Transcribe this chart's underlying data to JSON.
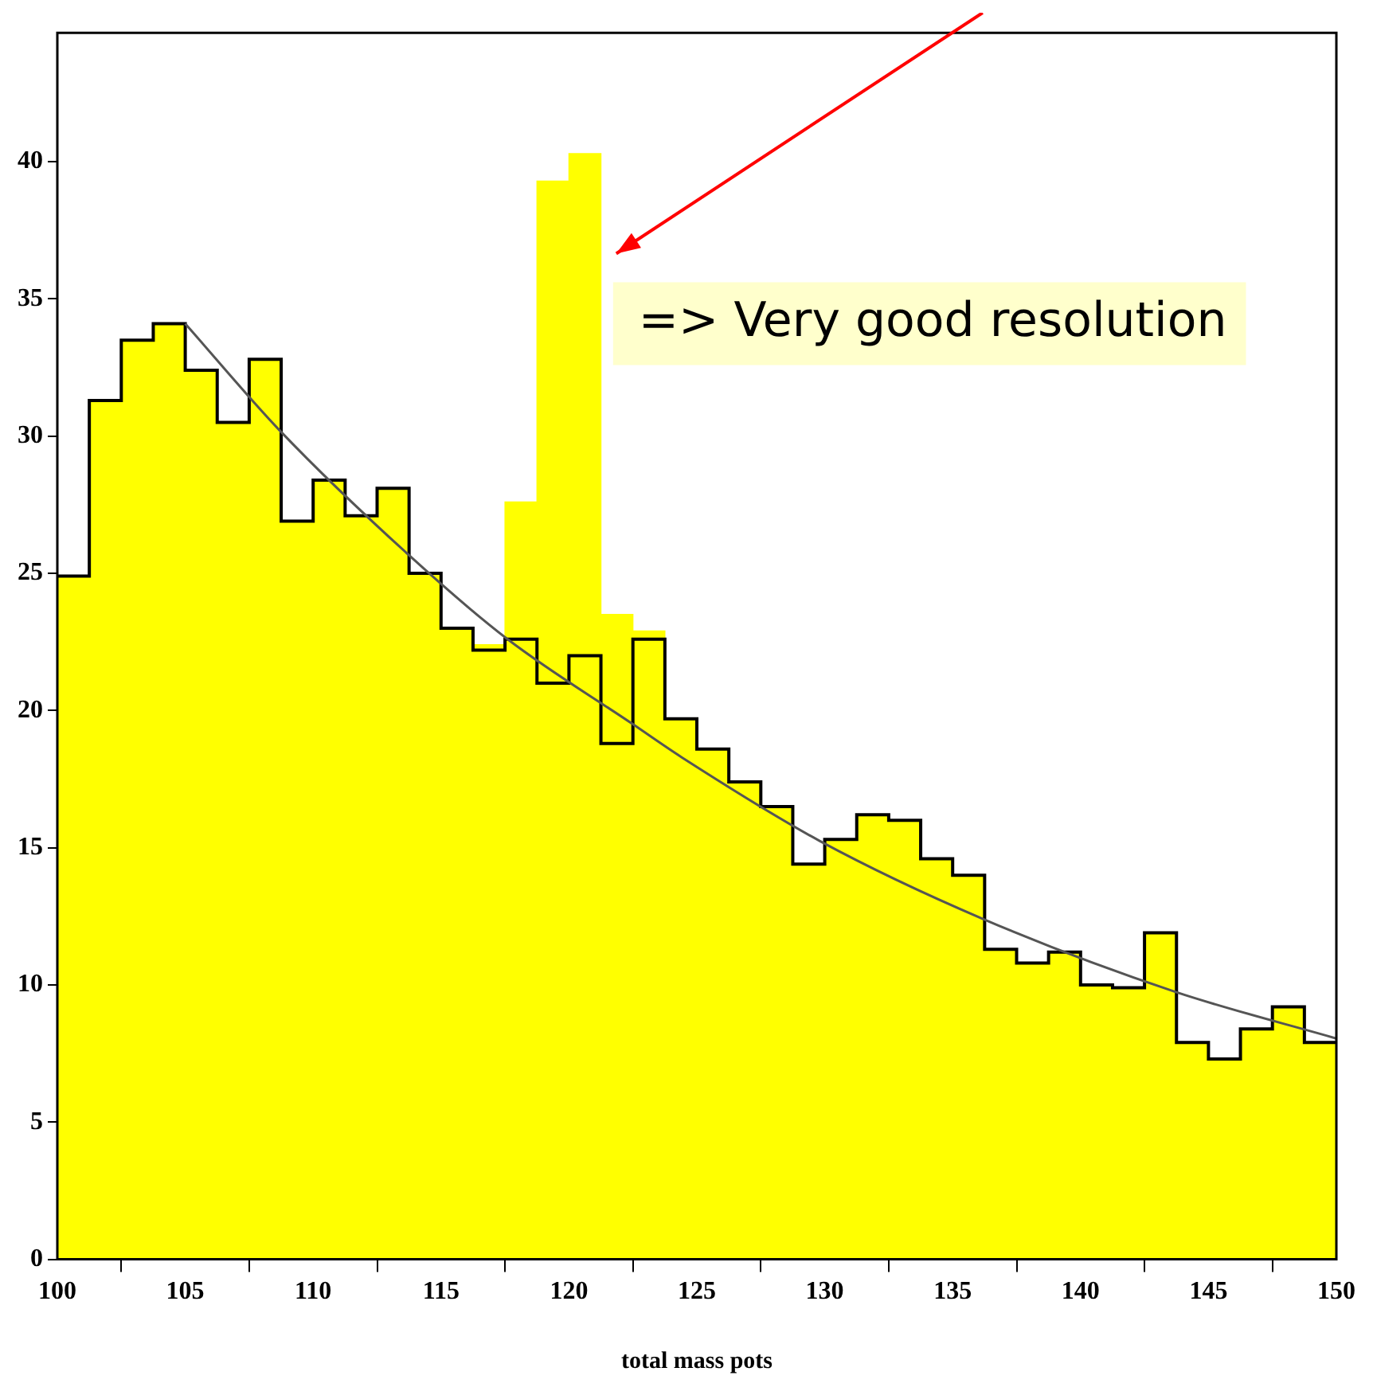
{
  "chart_data": {
    "type": "histogram",
    "xlabel": "total mass pots",
    "bins": [
      100,
      101.25,
      102.5,
      103.75,
      105,
      106.25,
      107.5,
      108.75,
      110,
      111.25,
      112.5,
      113.75,
      115,
      116.25,
      117.5,
      118.75,
      120,
      121.25,
      122.5,
      123.75,
      125,
      126.25,
      127.5,
      128.75,
      130,
      131.25,
      132.5,
      133.75,
      135,
      136.25,
      137.5,
      138.75,
      140,
      141.25,
      142.5,
      143.75,
      145,
      146.25,
      147.5,
      148.75,
      150
    ],
    "series": [
      {
        "color": "#ffff00",
        "values": [
          24.9,
          31.3,
          33.5,
          34.1,
          32.4,
          30.5,
          32.8,
          26.9,
          28.4,
          27.1,
          28.1,
          25.0,
          23.0,
          22.4,
          27.6,
          39.3,
          40.3,
          23.5,
          22.9,
          19.7,
          18.6,
          17.4,
          16.5,
          14.4,
          15.3,
          16.2,
          16.0,
          14.6,
          14.0,
          11.3,
          10.8,
          11.2,
          10.0,
          9.9,
          11.9,
          7.9,
          7.3,
          8.4,
          9.2,
          7.9
        ]
      },
      {
        "type": "step",
        "color": "#000000",
        "x": [
          100,
          101.25,
          102.5,
          103.75,
          105,
          106.25,
          107.5,
          108.75,
          110,
          111.25,
          112.5,
          113.75,
          115,
          116.25,
          117.5,
          118.75,
          120,
          121.25,
          122.5,
          123.75,
          125,
          126.25,
          127.5,
          128.75,
          130,
          131.25,
          132.5,
          133.75,
          135,
          136.25,
          137.5,
          138.75,
          140,
          141.25,
          142.5,
          143.75,
          145,
          146.25,
          147.5,
          148.75,
          150
        ],
        "values": [
          24.9,
          31.3,
          33.5,
          34.1,
          32.4,
          30.5,
          32.8,
          26.9,
          28.4,
          27.1,
          28.1,
          25.0,
          23.0,
          22.2,
          22.6,
          21.0,
          22.0,
          18.8,
          22.6,
          19.7,
          18.6,
          17.4,
          16.5,
          14.4,
          15.3,
          16.2,
          16.0,
          14.6,
          14.0,
          11.3,
          10.8,
          11.2,
          10.0,
          9.9,
          11.9,
          7.9,
          7.3,
          8.4,
          9.2,
          7.9,
          7.9
        ]
      },
      {
        "type": "line",
        "color": "#555555",
        "x": [
          105,
          108.7,
          113.7,
          117.6,
          122.5,
          124.4,
          129.8,
          136.2,
          143.7,
          150
        ],
        "values": [
          34.1,
          30.2,
          25.7,
          22.6,
          19.5,
          18.3,
          15.25,
          12.4,
          9.75,
          8.05
        ]
      }
    ],
    "xlim": [
      100,
      150
    ],
    "ylim": [
      0,
      44.7
    ],
    "xticks": [
      100,
      105,
      110,
      115,
      120,
      125,
      130,
      135,
      140,
      145,
      150
    ],
    "yticks": [
      0,
      5,
      10,
      15,
      20,
      25,
      30,
      35,
      40
    ],
    "annotations": [
      "=> Very good resolution"
    ]
  }
}
